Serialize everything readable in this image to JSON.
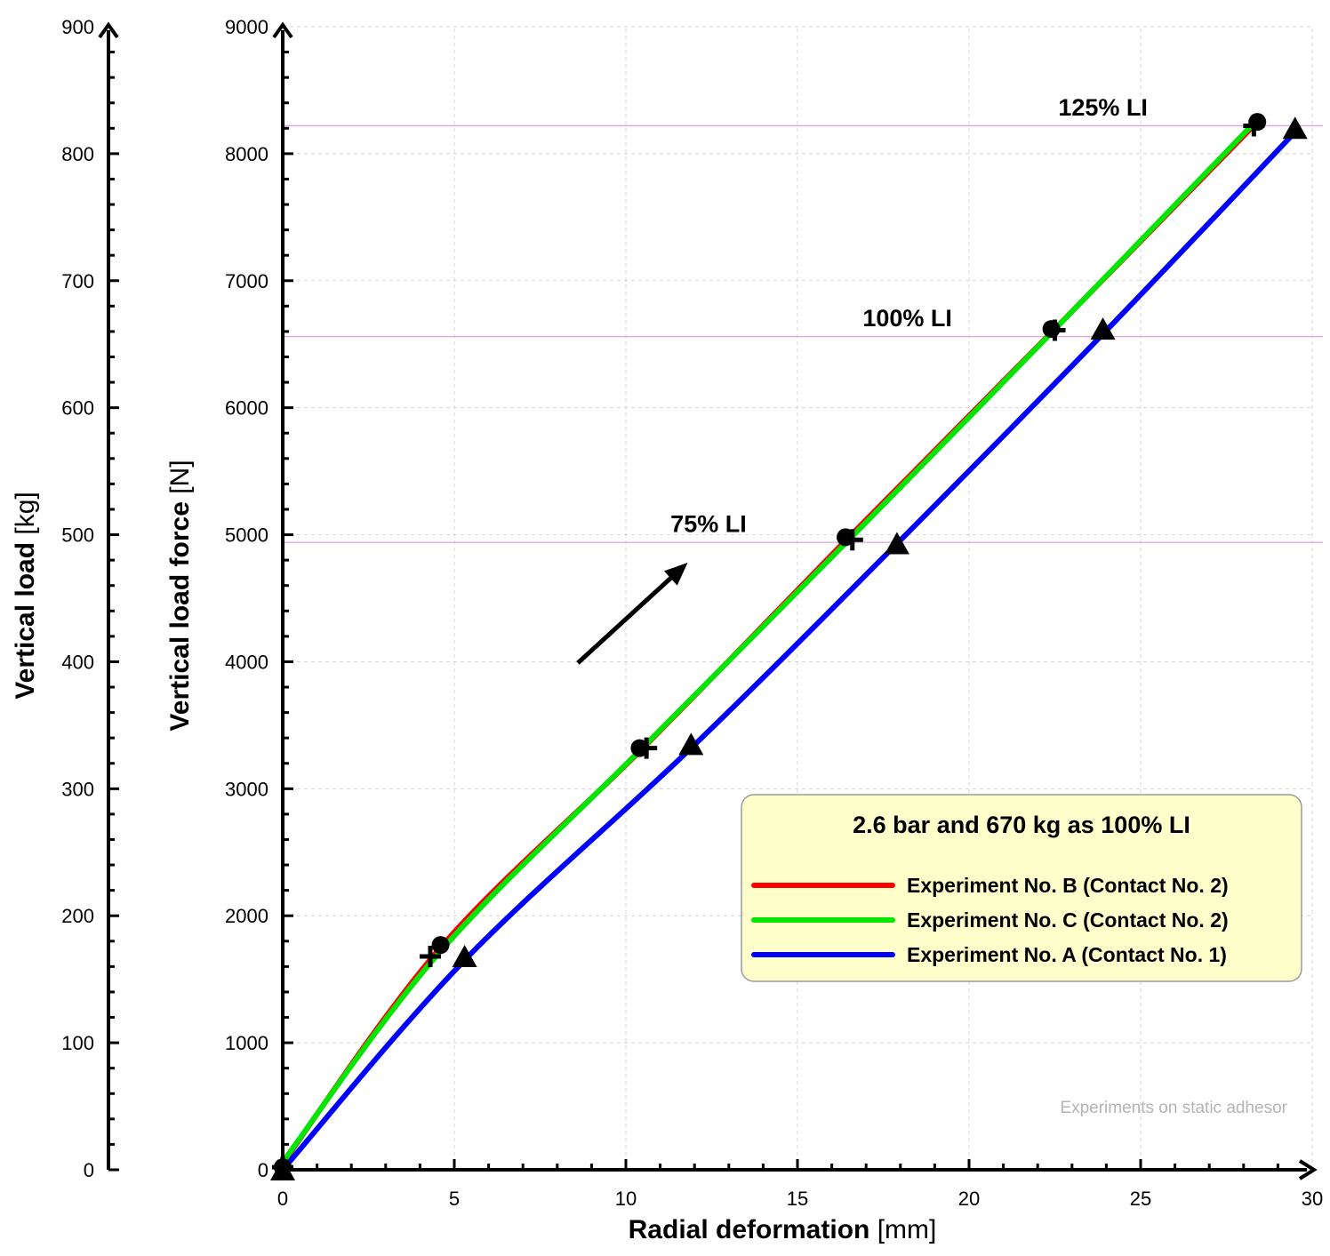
{
  "chart_data": {
    "type": "line",
    "xlabel": {
      "bold": "Radial deformation",
      "unit": "[mm]"
    },
    "ylabel": {
      "bold": "Vertical load force",
      "unit": "[N]"
    },
    "y2label": {
      "bold": "Vertical load",
      "unit": "[kg]"
    },
    "xlim": [
      0,
      30
    ],
    "ylim": [
      0,
      9000
    ],
    "y2lim": [
      0,
      900
    ],
    "xticks": [
      "0",
      "5",
      "10",
      "15",
      "20",
      "25",
      "30"
    ],
    "yticks": [
      "0",
      "1000",
      "2000",
      "3000",
      "4000",
      "5000",
      "6000",
      "7000",
      "8000",
      "9000"
    ],
    "y2ticks": [
      "0",
      "100",
      "200",
      "300",
      "400",
      "500",
      "600",
      "700",
      "800",
      "900"
    ],
    "grid": true,
    "legend_position": "bottom-right",
    "legend_title": "2.6 bar and 670 kg as 100% LI",
    "series": [
      {
        "name": "Experiment No. B (Contact No. 2)",
        "color": "#ff0000",
        "x": [
          0,
          4.6,
          10.5,
          16.5,
          22.5,
          28.4
        ],
        "y": [
          50,
          1750,
          3320,
          4980,
          6620,
          8250
        ]
      },
      {
        "name": "Experiment No. C (Contact No. 2)",
        "color": "#00e600",
        "x": [
          0,
          4.5,
          10.4,
          16.5,
          22.4,
          28.3
        ],
        "y": [
          60,
          1690,
          3300,
          4960,
          6590,
          8240
        ]
      },
      {
        "name": "Experiment No. A (Contact No. 1)",
        "color": "#0000ff",
        "x": [
          0,
          5.3,
          11.9,
          17.9,
          23.9,
          29.5
        ],
        "y": [
          0,
          1650,
          3320,
          4930,
          6580,
          8170
        ]
      }
    ],
    "markers": {
      "circle": {
        "x": [
          0,
          4.6,
          10.4,
          16.4,
          22.4,
          28.4
        ],
        "y": [
          20,
          1770,
          3320,
          4980,
          6620,
          8250
        ]
      },
      "plus": {
        "x": [
          0,
          4.3,
          10.6,
          16.6,
          22.5,
          28.3
        ],
        "y": [
          20,
          1680,
          3320,
          4960,
          6610,
          8220
        ]
      },
      "triangle": {
        "x": [
          0,
          5.3,
          11.9,
          17.9,
          23.9,
          29.5
        ],
        "y": [
          0,
          1680,
          3350,
          4930,
          6620,
          8200
        ]
      }
    },
    "reference_lines": [
      {
        "label": "75% LI",
        "y": 4940,
        "label_x": 11.3,
        "label_y": 5020,
        "color": "#d9a6d9"
      },
      {
        "label": "100% LI",
        "y": 6560,
        "label_x": 16.9,
        "label_y": 6640,
        "color": "#d9a6d9"
      },
      {
        "label": "125% LI",
        "y": 8220,
        "label_x": 22.6,
        "label_y": 8300,
        "color": "#d9a6d9"
      }
    ],
    "arrow": {
      "from": [
        8.6,
        3990
      ],
      "to": [
        11.8,
        4780
      ],
      "color": "#000000"
    },
    "watermark": "Experiments on static adhesor"
  }
}
